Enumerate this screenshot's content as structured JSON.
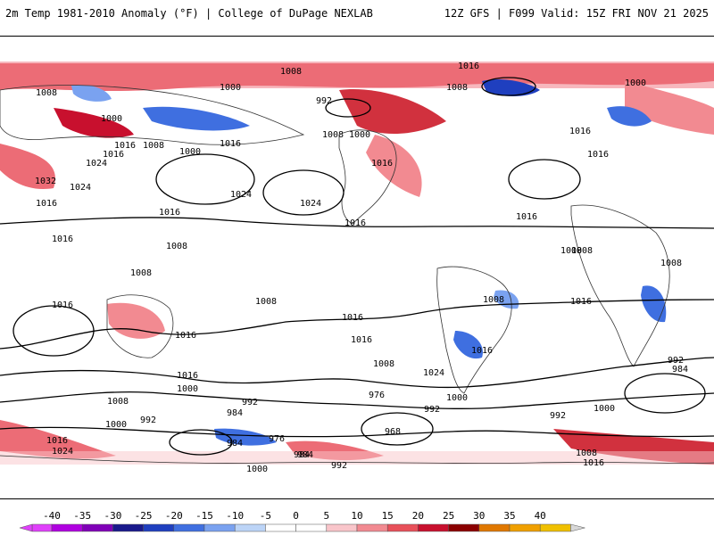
{
  "header": {
    "title": "2m Temp 1981-2010 Anomaly (°F) | College of DuPage NEXLAB",
    "run_info": "12Z GFS | F099 Valid: 15Z FRI NOV 21 2025"
  },
  "colorbar": {
    "ticks": [
      "-40",
      "-35",
      "-30",
      "-25",
      "-20",
      "-15",
      "-10",
      "-5",
      "0",
      "5",
      "10",
      "15",
      "20",
      "25",
      "30",
      "35",
      "40"
    ],
    "colors": [
      "#e040fb",
      "#b000e0",
      "#8000b8",
      "#1a1a8c",
      "#1f3fbf",
      "#3f6fe0",
      "#7aa2f0",
      "#bcd4f7",
      "#ffffff",
      "#ffffff",
      "#f9c5ca",
      "#f28a91",
      "#e8505a",
      "#c8102e",
      "#8b0000",
      "#e07800",
      "#f0a000",
      "#f0c000"
    ]
  },
  "contour_labels": [
    {
      "text": "1016"
    },
    {
      "text": "1008"
    },
    {
      "text": "1000"
    },
    {
      "text": "1008"
    },
    {
      "text": "1000"
    },
    {
      "text": "992"
    },
    {
      "text": "1008"
    },
    {
      "text": "1000"
    },
    {
      "text": "1016"
    },
    {
      "text": "1024"
    },
    {
      "text": "1008"
    },
    {
      "text": "1016"
    },
    {
      "text": "1000"
    },
    {
      "text": "1016"
    },
    {
      "text": "1024"
    },
    {
      "text": "1024"
    },
    {
      "text": "1016"
    },
    {
      "text": "1016"
    },
    {
      "text": "1016"
    },
    {
      "text": "1008"
    },
    {
      "text": "1008"
    },
    {
      "text": "1016"
    },
    {
      "text": "1032"
    },
    {
      "text": "1024"
    },
    {
      "text": "1016"
    },
    {
      "text": "1016"
    },
    {
      "text": "1016"
    },
    {
      "text": "1000"
    },
    {
      "text": "1008"
    },
    {
      "text": "1016"
    },
    {
      "text": "1008"
    },
    {
      "text": "1008"
    },
    {
      "text": "1008"
    },
    {
      "text": "1008"
    },
    {
      "text": "1016"
    },
    {
      "text": "1008"
    },
    {
      "text": "1016"
    },
    {
      "text": "1016"
    },
    {
      "text": "1016"
    },
    {
      "text": "1016"
    },
    {
      "text": "1016"
    },
    {
      "text": "1008"
    },
    {
      "text": "1024"
    },
    {
      "text": "1016"
    },
    {
      "text": "1000"
    },
    {
      "text": "992"
    },
    {
      "text": "976"
    },
    {
      "text": "992"
    },
    {
      "text": "984"
    },
    {
      "text": "1008"
    },
    {
      "text": "1000"
    },
    {
      "text": "992"
    },
    {
      "text": "984"
    },
    {
      "text": "1016"
    },
    {
      "text": "1024"
    },
    {
      "text": "992"
    },
    {
      "text": "984"
    },
    {
      "text": "976"
    },
    {
      "text": "984"
    },
    {
      "text": "968"
    },
    {
      "text": "1000"
    },
    {
      "text": "992"
    },
    {
      "text": "1000"
    },
    {
      "text": "1008"
    },
    {
      "text": "1016"
    },
    {
      "text": "992"
    },
    {
      "text": "984"
    },
    {
      "text": "1000"
    }
  ]
}
